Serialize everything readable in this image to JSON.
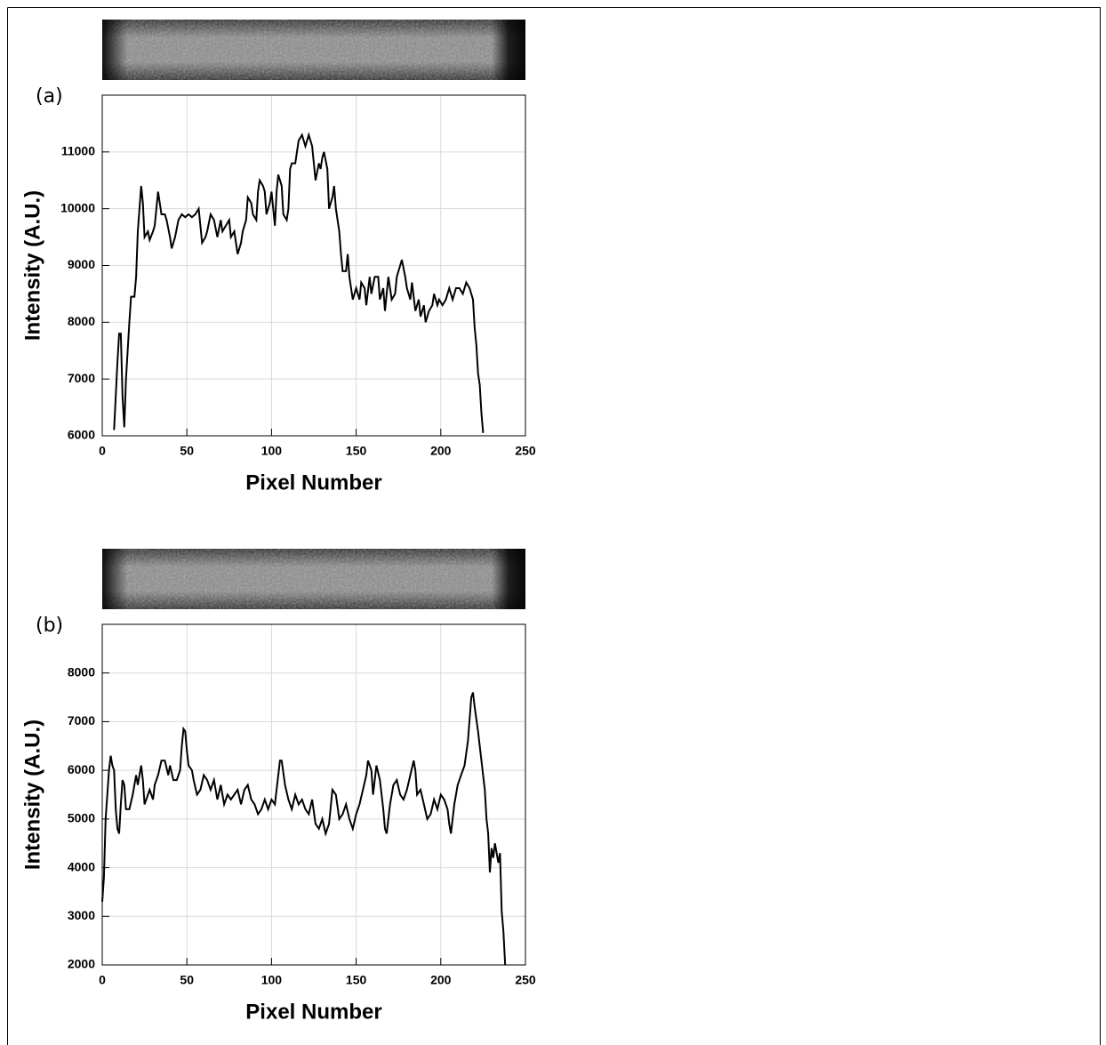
{
  "chart_data": [
    {
      "type": "line",
      "label": "(a)",
      "x_label": "Pixel Number",
      "y_label": "Intensity (A.U.)",
      "color": "#000000",
      "grid": true,
      "xlim": [
        0,
        250
      ],
      "xticks": [
        0,
        50,
        100,
        150,
        200,
        250
      ],
      "ylim": [
        6000,
        12000
      ],
      "yticks": [
        6000,
        7000,
        8000,
        9000,
        10000,
        11000
      ],
      "x": [
        7,
        8,
        9,
        10,
        11,
        12,
        13,
        14,
        16,
        17,
        19,
        20,
        21,
        22,
        23,
        24,
        25,
        27,
        28,
        30,
        31,
        32,
        33,
        34,
        35,
        37,
        38,
        40,
        41,
        43,
        45,
        47,
        49,
        51,
        53,
        55,
        57,
        58,
        59,
        61,
        62,
        64,
        66,
        68,
        70,
        71,
        73,
        75,
        76,
        78,
        80,
        82,
        83,
        85,
        86,
        88,
        89,
        91,
        92,
        93,
        95,
        96,
        97,
        99,
        100,
        101,
        102,
        103,
        104,
        106,
        107,
        109,
        110,
        111,
        112,
        114,
        115,
        116,
        118,
        120,
        122,
        124,
        125,
        126,
        128,
        129,
        130,
        131,
        133,
        134,
        136,
        137,
        138,
        140,
        141,
        142,
        144,
        145,
        146,
        148,
        150,
        152,
        153,
        155,
        156,
        158,
        159,
        161,
        163,
        164,
        166,
        167,
        169,
        171,
        173,
        174,
        176,
        177,
        179,
        180,
        182,
        183,
        185,
        187,
        188,
        190,
        191,
        193,
        195,
        196,
        198,
        199,
        201,
        203,
        205,
        207,
        209,
        211,
        213,
        215,
        217,
        219,
        220,
        221,
        222,
        223,
        224,
        225
      ],
      "values": [
        6100,
        6700,
        7300,
        7800,
        7800,
        6700,
        6150,
        7000,
        8000,
        8450,
        8450,
        8800,
        9600,
        10000,
        10400,
        10100,
        9500,
        9600,
        9450,
        9600,
        9700,
        10000,
        10300,
        10100,
        9900,
        9900,
        9800,
        9500,
        9300,
        9500,
        9800,
        9900,
        9850,
        9900,
        9850,
        9900,
        10000,
        9700,
        9400,
        9500,
        9600,
        9900,
        9800,
        9500,
        9800,
        9600,
        9700,
        9800,
        9500,
        9600,
        9200,
        9400,
        9600,
        9800,
        10200,
        10100,
        9900,
        9800,
        10300,
        10500,
        10400,
        10300,
        9900,
        10100,
        10300,
        10000,
        9700,
        10300,
        10600,
        10400,
        9900,
        9800,
        10000,
        10700,
        10800,
        10800,
        11000,
        11200,
        11300,
        11100,
        11300,
        11100,
        10800,
        10500,
        10800,
        10700,
        10900,
        11000,
        10700,
        10000,
        10200,
        10400,
        10000,
        9600,
        9200,
        8900,
        8900,
        9200,
        8800,
        8400,
        8600,
        8400,
        8700,
        8600,
        8300,
        8800,
        8500,
        8800,
        8800,
        8400,
        8600,
        8200,
        8800,
        8400,
        8500,
        8800,
        9000,
        9100,
        8800,
        8600,
        8400,
        8700,
        8200,
        8400,
        8100,
        8300,
        8000,
        8200,
        8300,
        8500,
        8300,
        8400,
        8300,
        8400,
        8600,
        8400,
        8600,
        8600,
        8500,
        8700,
        8600,
        8400,
        7900,
        7600,
        7100,
        6900,
        6400,
        6050
      ]
    },
    {
      "type": "line",
      "label": "(b)",
      "x_label": "Pixel Number",
      "y_label": "Intensity (A.U.)",
      "color": "#000000",
      "grid": true,
      "xlim": [
        0,
        250
      ],
      "xticks": [
        0,
        50,
        100,
        150,
        200,
        250
      ],
      "ylim": [
        2000,
        9000
      ],
      "yticks": [
        2000,
        3000,
        4000,
        5000,
        6000,
        7000,
        8000
      ],
      "x": [
        0,
        1,
        2,
        3,
        4,
        5,
        6,
        7,
        8,
        9,
        10,
        11,
        12,
        13,
        14,
        16,
        18,
        20,
        21,
        23,
        24,
        25,
        27,
        28,
        30,
        31,
        33,
        35,
        37,
        39,
        40,
        42,
        44,
        46,
        47,
        48,
        49,
        50,
        51,
        53,
        54,
        56,
        58,
        60,
        62,
        64,
        66,
        68,
        70,
        72,
        74,
        76,
        78,
        80,
        82,
        84,
        86,
        88,
        90,
        92,
        94,
        96,
        98,
        100,
        102,
        104,
        105,
        106,
        108,
        110,
        112,
        114,
        116,
        118,
        120,
        122,
        124,
        126,
        128,
        130,
        132,
        134,
        136,
        138,
        140,
        142,
        144,
        146,
        148,
        150,
        152,
        154,
        156,
        157,
        159,
        160,
        162,
        164,
        166,
        167,
        168,
        170,
        172,
        174,
        176,
        178,
        180,
        182,
        184,
        185,
        186,
        188,
        190,
        192,
        194,
        196,
        198,
        200,
        202,
        204,
        205,
        206,
        208,
        210,
        212,
        214,
        216,
        218,
        219,
        220,
        222,
        224,
        226,
        227,
        228,
        229,
        230,
        231,
        232,
        233,
        234,
        235,
        236,
        237,
        238
      ],
      "values": [
        3300,
        3800,
        5000,
        5500,
        6000,
        6300,
        6100,
        6000,
        5200,
        4800,
        4700,
        5300,
        5800,
        5700,
        5200,
        5200,
        5500,
        5900,
        5700,
        6100,
        5800,
        5300,
        5500,
        5600,
        5400,
        5700,
        5900,
        6200,
        6200,
        5900,
        6100,
        5800,
        5800,
        6000,
        6500,
        6850,
        6800,
        6400,
        6100,
        6000,
        5800,
        5500,
        5600,
        5900,
        5800,
        5600,
        5800,
        5400,
        5700,
        5300,
        5500,
        5400,
        5500,
        5600,
        5300,
        5600,
        5700,
        5400,
        5300,
        5100,
        5200,
        5400,
        5200,
        5400,
        5300,
        5900,
        6200,
        6200,
        5700,
        5400,
        5200,
        5500,
        5300,
        5400,
        5200,
        5100,
        5400,
        4900,
        4800,
        5000,
        4700,
        4900,
        5600,
        5500,
        5000,
        5100,
        5300,
        5000,
        4800,
        5100,
        5300,
        5600,
        5900,
        6200,
        6000,
        5500,
        6100,
        5800,
        5200,
        4800,
        4700,
        5300,
        5700,
        5800,
        5500,
        5400,
        5600,
        5900,
        6200,
        6000,
        5500,
        5600,
        5300,
        5000,
        5100,
        5400,
        5200,
        5500,
        5400,
        5200,
        4900,
        4700,
        5300,
        5700,
        5900,
        6100,
        6600,
        7500,
        7600,
        7300,
        6800,
        6200,
        5600,
        5000,
        4700,
        3900,
        4400,
        4200,
        4500,
        4300,
        4100,
        4300,
        3100,
        2700,
        2000
      ]
    }
  ]
}
